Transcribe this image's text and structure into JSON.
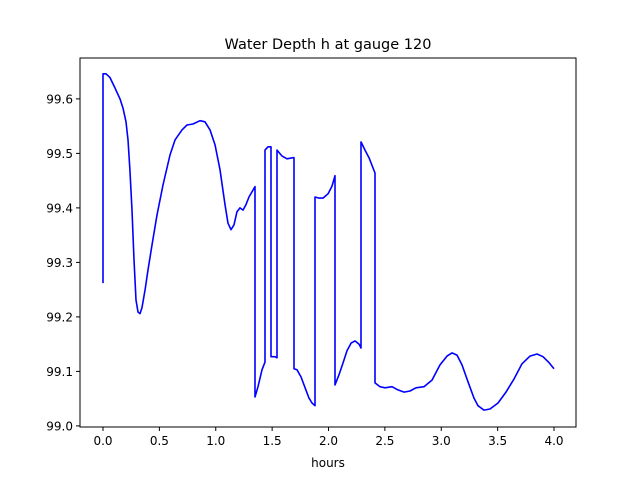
{
  "chart_data": {
    "type": "line",
    "title": "Water Depth h at gauge 120",
    "xlabel": "hours",
    "ylabel": "",
    "xlim": [
      -0.204,
      4.195
    ],
    "ylim": [
      98.998,
      99.675
    ],
    "xticks": [
      0.0,
      0.5,
      1.0,
      1.5,
      2.0,
      2.5,
      3.0,
      3.5,
      4.0
    ],
    "xtick_labels": [
      "0.0",
      "0.5",
      "1.0",
      "1.5",
      "2.0",
      "2.5",
      "3.0",
      "3.5",
      "4.0"
    ],
    "yticks": [
      99.0,
      99.1,
      99.2,
      99.3,
      99.4,
      99.5,
      99.6
    ],
    "ytick_labels": [
      "99.0",
      "99.1",
      "99.2",
      "99.3",
      "99.4",
      "99.5",
      "99.6"
    ],
    "grid": false,
    "series": [
      {
        "name": "h",
        "color": "#0000ff",
        "x": [
          0,
          0,
          0.027,
          0.062,
          0.106,
          0.151,
          0.177,
          0.204,
          0.222,
          0.239,
          0.257,
          0.275,
          0.293,
          0.31,
          0.328,
          0.346,
          0.373,
          0.399,
          0.435,
          0.479,
          0.532,
          0.594,
          0.639,
          0.701,
          0.745,
          0.798,
          0.86,
          0.905,
          0.949,
          0.993,
          1.038,
          1.082,
          1.109,
          1.135,
          1.162,
          1.188,
          1.215,
          1.242,
          1.268,
          1.295,
          1.348,
          1.348,
          1.375,
          1.41,
          1.437,
          1.437,
          1.463,
          1.49,
          1.49,
          1.525,
          1.543,
          1.543,
          1.588,
          1.632,
          1.685,
          1.694,
          1.694,
          1.721,
          1.756,
          1.792,
          1.827,
          1.854,
          1.88,
          1.88,
          1.916,
          1.951,
          1.996,
          2.031,
          2.058,
          2.058,
          2.093,
          2.129,
          2.164,
          2.2,
          2.235,
          2.271,
          2.288,
          2.288,
          2.324,
          2.359,
          2.412,
          2.412,
          2.457,
          2.501,
          2.563,
          2.616,
          2.67,
          2.723,
          2.776,
          2.847,
          2.918,
          2.989,
          3.051,
          3.095,
          3.14,
          3.184,
          3.237,
          3.29,
          3.326,
          3.379,
          3.432,
          3.503,
          3.574,
          3.645,
          3.716,
          3.787,
          3.849,
          3.902,
          3.956,
          4.0
        ],
        "y": [
          99.262,
          99.646,
          99.646,
          99.639,
          99.62,
          99.6,
          99.583,
          99.558,
          99.525,
          99.47,
          99.396,
          99.305,
          99.231,
          99.209,
          99.206,
          99.217,
          99.25,
          99.286,
          99.332,
          99.387,
          99.442,
          99.497,
          99.525,
          99.543,
          99.552,
          99.554,
          99.56,
          99.558,
          99.543,
          99.516,
          99.47,
          99.406,
          99.372,
          99.36,
          99.369,
          99.393,
          99.4,
          99.396,
          99.406,
          99.42,
          99.439,
          99.053,
          99.072,
          99.103,
          99.117,
          99.506,
          99.512,
          99.512,
          99.127,
          99.127,
          99.125,
          99.506,
          99.495,
          99.49,
          99.492,
          99.492,
          99.105,
          99.103,
          99.09,
          99.07,
          99.051,
          99.042,
          99.037,
          99.42,
          99.418,
          99.418,
          99.426,
          99.44,
          99.459,
          99.075,
          99.094,
          99.116,
          99.138,
          99.152,
          99.156,
          99.15,
          99.143,
          99.521,
          99.506,
          99.492,
          99.464,
          99.079,
          99.072,
          99.07,
          99.072,
          99.066,
          99.062,
          99.064,
          99.07,
          99.072,
          99.084,
          99.112,
          99.128,
          99.134,
          99.13,
          99.112,
          99.081,
          99.051,
          99.037,
          99.029,
          99.031,
          99.042,
          99.062,
          99.086,
          99.114,
          99.128,
          99.132,
          99.127,
          99.116,
          99.105
        ]
      }
    ]
  }
}
